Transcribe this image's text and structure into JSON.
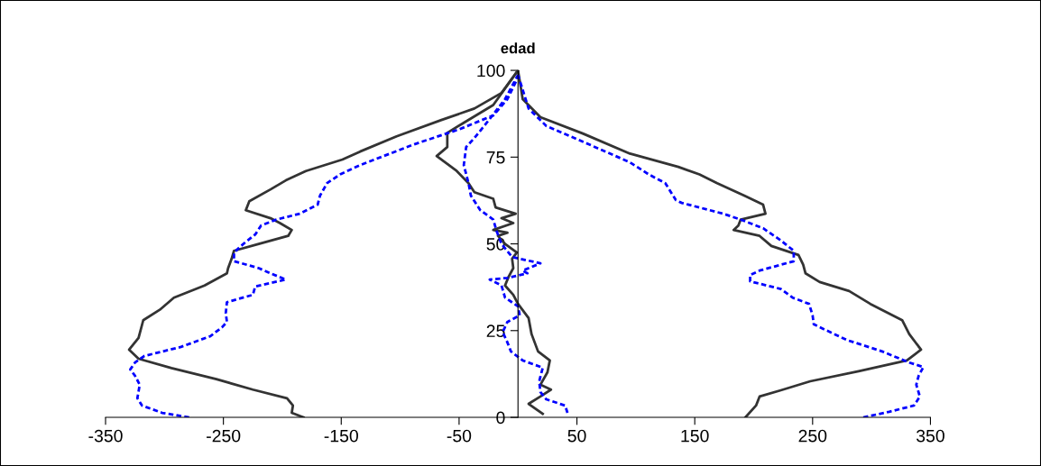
{
  "chart_data": {
    "type": "line",
    "ylabel": "edad",
    "xlim": [
      -350,
      350
    ],
    "xticks": [
      -350,
      -250,
      -150,
      -50,
      50,
      150,
      250,
      350
    ],
    "ylim": [
      0,
      100
    ],
    "yticks": [
      0,
      25,
      50,
      75,
      100
    ],
    "grid": false,
    "legend": false,
    "marker": "none",
    "series": [
      {
        "color": "#333333",
        "line_style": "solid",
        "x": [
          -182,
          -192,
          -191,
          -196,
          -225,
          -256,
          -294,
          -322,
          -330,
          -322,
          -318,
          -304,
          -292,
          -266,
          -247,
          -246,
          -243,
          -241,
          -220,
          -195,
          -192,
          -202,
          -210,
          -231,
          -228,
          -210,
          -197,
          -180,
          -149,
          -134,
          -103,
          -65,
          -37,
          -14,
          0
        ],
        "values": [
          0,
          1.3,
          3.4,
          5.5,
          8,
          11,
          14.2,
          16.9,
          19.5,
          22.9,
          28,
          31,
          34.5,
          38,
          41.5,
          43,
          45.7,
          48,
          50,
          52.3,
          54,
          56,
          57.4,
          59.7,
          62.3,
          65.7,
          68.3,
          71,
          74.3,
          76.6,
          81,
          85.7,
          89,
          93.5,
          100
        ]
      },
      {
        "color": "#333333",
        "line_style": "solid",
        "x": [
          193,
          202,
          205,
          223,
          248,
          289,
          330,
          342,
          332,
          326,
          299,
          281,
          256,
          244,
          242,
          238,
          215,
          205,
          183,
          187,
          189,
          210,
          208,
          192,
          169,
          154,
          136,
          95,
          55,
          19,
          4,
          0
        ],
        "values": [
          0,
          3.4,
          6,
          7.8,
          10.4,
          13.3,
          16.4,
          19.5,
          24,
          28,
          32.7,
          36.4,
          39,
          41.5,
          44,
          46.8,
          49.4,
          52.3,
          54,
          55.3,
          57,
          58.7,
          61.3,
          63.9,
          67.5,
          70,
          72.2,
          76,
          81.8,
          86.5,
          91.7,
          100
        ]
      },
      {
        "color": "#333333",
        "line_style": "solid",
        "x": [
          21,
          9,
          19,
          28,
          19,
          25,
          27,
          17,
          11.5,
          9,
          0,
          -4,
          -11,
          -8,
          -4,
          -5,
          -1,
          -11,
          -17,
          -9,
          -21,
          -4,
          -14,
          -2,
          -19,
          -21,
          -37,
          -42,
          -52,
          -69,
          -60,
          -60,
          -47,
          -21,
          0
        ],
        "values": [
          1,
          3.9,
          6,
          8,
          9.4,
          13,
          16.4,
          19,
          24,
          28.6,
          32.7,
          35.3,
          38,
          40.5,
          43,
          45.7,
          47.5,
          50,
          52.3,
          53.2,
          54,
          56,
          57.4,
          58.7,
          60.5,
          63,
          64.9,
          67.5,
          71,
          75.3,
          77.9,
          82,
          84.7,
          90,
          100
        ]
      },
      {
        "color": "#0000ff",
        "line_style": "dashed",
        "x": [
          -279,
          -302,
          -319,
          -323,
          -321,
          -325,
          -329,
          -325,
          -317,
          -286,
          -261,
          -251,
          -247,
          -248,
          -247,
          -225,
          -223,
          -197,
          -210,
          -220,
          -241,
          -241,
          -233,
          -223,
          -218,
          -205,
          -185,
          -170,
          -168,
          -162,
          -151,
          -134,
          -88,
          -50,
          -21,
          -9,
          0
        ],
        "values": [
          0,
          1.3,
          3.4,
          5.5,
          9.4,
          12,
          13.8,
          15.8,
          17.7,
          20.3,
          23.4,
          26,
          27.5,
          30,
          33.2,
          35.3,
          37.7,
          39.7,
          41.5,
          43,
          45,
          47.5,
          50,
          52.7,
          55.3,
          57,
          58.7,
          61.3,
          63.9,
          67.5,
          70,
          72.7,
          78.7,
          83,
          87,
          91.7,
          98
        ]
      },
      {
        "color": "#0000ff",
        "line_style": "dashed",
        "x": [
          293,
          315,
          336,
          341,
          338,
          340,
          344,
          332,
          309,
          279,
          251,
          250,
          247,
          233,
          223,
          197,
          197,
          205,
          234,
          234,
          223,
          208,
          189,
          174,
          139,
          134,
          125,
          111,
          95,
          60,
          24,
          9,
          0
        ],
        "values": [
          0,
          1.6,
          3.4,
          6,
          9.4,
          12,
          14.5,
          15.8,
          19,
          22.3,
          26.8,
          29.4,
          32.7,
          34.5,
          37,
          39.2,
          41,
          42.3,
          45,
          48,
          51,
          54.5,
          57,
          58.7,
          61.8,
          62.6,
          67.5,
          70,
          73.5,
          78.7,
          84,
          89,
          98.7
        ]
      },
      {
        "color": "#0000ff",
        "line_style": "dashed",
        "x": [
          42,
          40,
          24,
          19,
          18,
          21,
          4,
          -6,
          -9,
          -13,
          -9,
          1.5,
          0,
          -11,
          -14,
          -24,
          -9,
          8,
          4,
          19,
          -5,
          -14,
          -18,
          -21,
          -32,
          -40,
          -42,
          -46,
          -44,
          -37,
          -27,
          -11,
          0
        ],
        "values": [
          1.3,
          3.4,
          5.2,
          7.3,
          10.4,
          14.3,
          16.4,
          19,
          21.6,
          24.6,
          27.5,
          29.4,
          32,
          34.5,
          38,
          39.7,
          40.2,
          41.5,
          42.3,
          44.4,
          46.2,
          50,
          53.5,
          57,
          59.7,
          63.9,
          67.5,
          72.7,
          77.9,
          80.5,
          84.7,
          91.7,
          98.7
        ]
      }
    ]
  }
}
